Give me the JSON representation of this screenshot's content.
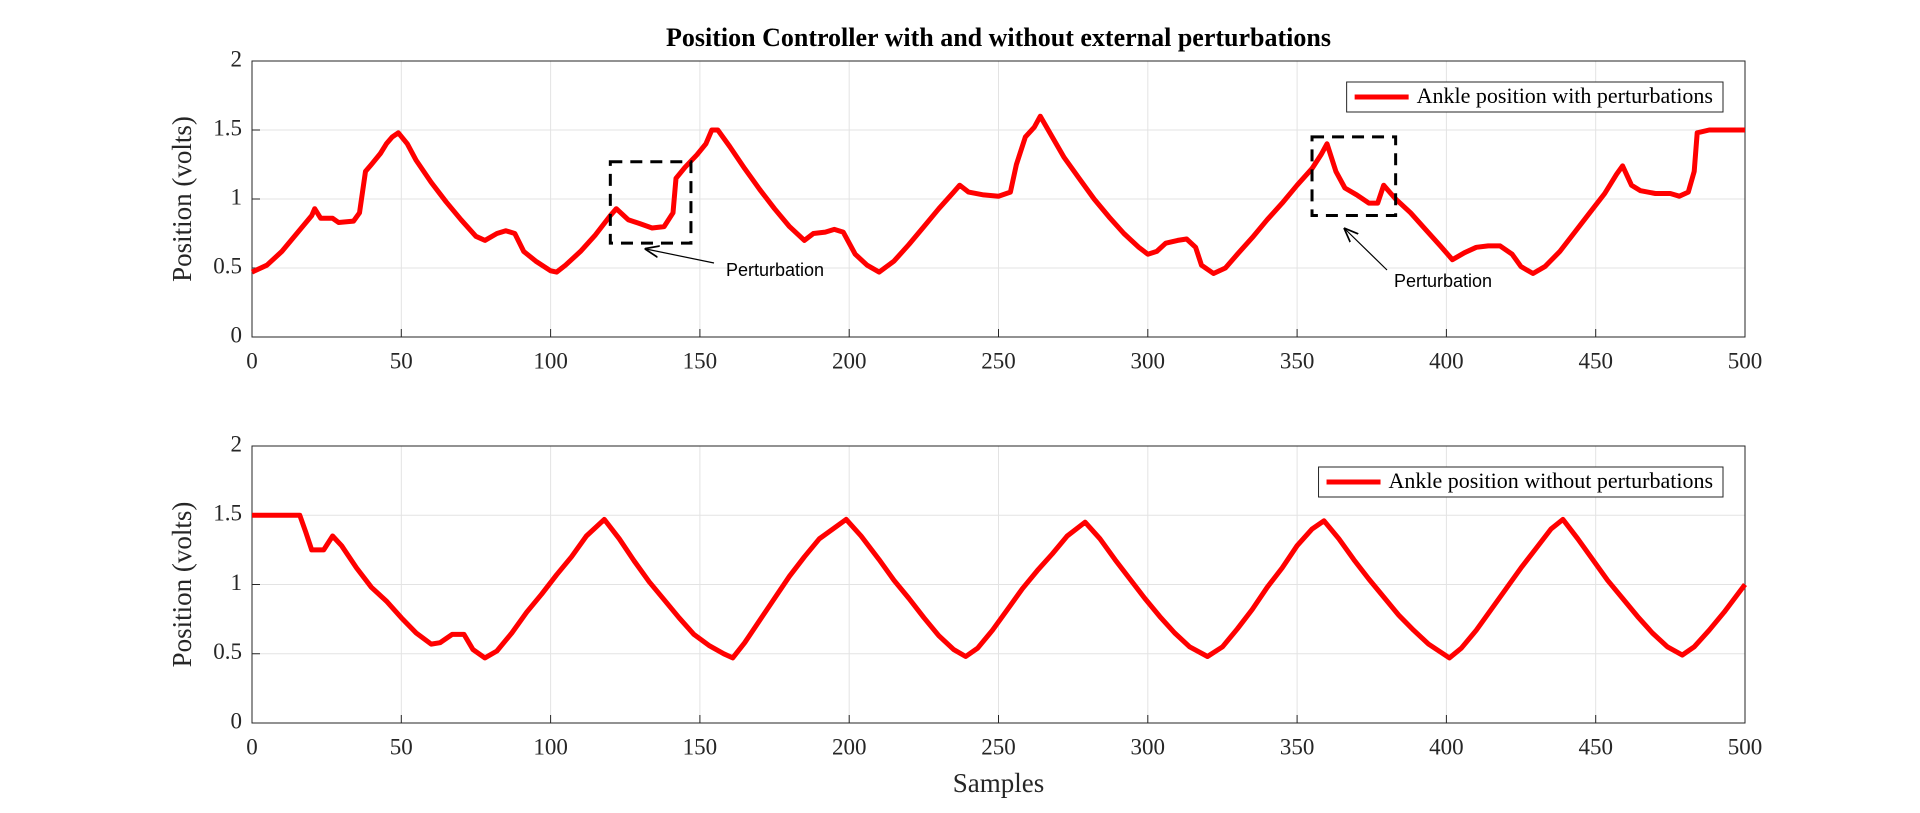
{
  "chart_data": [
    {
      "type": "line",
      "title": "Position Controller with and without external perturbations",
      "ylabel": "Position (volts)",
      "x": [
        0,
        5,
        10,
        15,
        20,
        21,
        23,
        27,
        29,
        34,
        36,
        38,
        40,
        43,
        45,
        47,
        49,
        52,
        55,
        60,
        65,
        70,
        75,
        78,
        82,
        85,
        88,
        91,
        95,
        100,
        102,
        105,
        110,
        115,
        120,
        122,
        126,
        130,
        134,
        138,
        141,
        142,
        145,
        149,
        152,
        154,
        156,
        160,
        165,
        170,
        175,
        180,
        185,
        188,
        192,
        195,
        198,
        202,
        206,
        210,
        215,
        220,
        225,
        230,
        235,
        237,
        240,
        245,
        250,
        254,
        256,
        259,
        262,
        264,
        268,
        272,
        277,
        282,
        287,
        292,
        297,
        300,
        303,
        306,
        310,
        313,
        316,
        318,
        322,
        326,
        330,
        335,
        340,
        345,
        350,
        355,
        358,
        360,
        363,
        366,
        370,
        374,
        377,
        379,
        383,
        388,
        393,
        398,
        402,
        406,
        410,
        414,
        418,
        422,
        425,
        429,
        433,
        438,
        443,
        448,
        453,
        457,
        459,
        462,
        465,
        470,
        475,
        478,
        481,
        483,
        484,
        488,
        493,
        500
      ],
      "series": [
        {
          "name": "Ankle position with perturbations",
          "color": "#ff0000",
          "values": [
            0.47,
            0.52,
            0.62,
            0.75,
            0.88,
            0.93,
            0.86,
            0.86,
            0.83,
            0.84,
            0.9,
            1.2,
            1.25,
            1.33,
            1.4,
            1.45,
            1.48,
            1.4,
            1.28,
            1.12,
            0.98,
            0.85,
            0.73,
            0.7,
            0.75,
            0.77,
            0.75,
            0.62,
            0.55,
            0.48,
            0.47,
            0.52,
            0.62,
            0.74,
            0.88,
            0.93,
            0.85,
            0.82,
            0.79,
            0.8,
            0.9,
            1.15,
            1.23,
            1.32,
            1.4,
            1.5,
            1.5,
            1.38,
            1.22,
            1.07,
            0.93,
            0.8,
            0.7,
            0.75,
            0.76,
            0.78,
            0.76,
            0.6,
            0.52,
            0.47,
            0.55,
            0.67,
            0.8,
            0.93,
            1.05,
            1.1,
            1.05,
            1.03,
            1.02,
            1.05,
            1.25,
            1.45,
            1.52,
            1.6,
            1.45,
            1.3,
            1.15,
            1.0,
            0.87,
            0.75,
            0.65,
            0.6,
            0.62,
            0.68,
            0.7,
            0.71,
            0.65,
            0.52,
            0.46,
            0.5,
            0.6,
            0.72,
            0.85,
            0.97,
            1.1,
            1.22,
            1.32,
            1.4,
            1.2,
            1.08,
            1.03,
            0.97,
            0.97,
            1.1,
            1.0,
            0.9,
            0.78,
            0.66,
            0.56,
            0.61,
            0.65,
            0.66,
            0.66,
            0.6,
            0.51,
            0.46,
            0.51,
            0.62,
            0.76,
            0.9,
            1.04,
            1.18,
            1.24,
            1.1,
            1.06,
            1.04,
            1.04,
            1.02,
            1.05,
            1.2,
            1.48,
            1.5,
            1.5,
            1.5
          ]
        }
      ],
      "xlim": [
        0,
        500
      ],
      "ylim": [
        0,
        2
      ],
      "xticks": [
        0,
        50,
        100,
        150,
        200,
        250,
        300,
        350,
        400,
        450,
        500
      ],
      "yticks": [
        0,
        0.5,
        1,
        1.5,
        2
      ],
      "grid": true,
      "legend": "upper right",
      "annotations": [
        {
          "text": "Perturbation"
        },
        {
          "text": "Perturbation"
        }
      ]
    },
    {
      "type": "line",
      "ylabel": "Position (volts)",
      "xlabel": "Samples",
      "x": [
        0,
        5,
        10,
        14,
        16,
        18,
        20,
        24,
        27,
        30,
        35,
        40,
        45,
        50,
        55,
        60,
        63,
        67,
        71,
        74,
        78,
        82,
        87,
        92,
        97,
        102,
        107,
        112,
        118,
        123,
        128,
        133,
        138,
        143,
        148,
        153,
        158,
        161,
        165,
        170,
        175,
        180,
        185,
        190,
        199,
        204,
        210,
        215,
        220,
        225,
        230,
        235,
        239,
        243,
        248,
        253,
        258,
        263,
        268,
        273,
        279,
        284,
        289,
        294,
        299,
        304,
        309,
        314,
        320,
        325,
        330,
        335,
        340,
        345,
        350,
        355,
        359,
        364,
        369,
        374,
        379,
        384,
        389,
        394,
        401,
        405,
        410,
        415,
        420,
        425,
        430,
        435,
        439,
        444,
        449,
        454,
        459,
        464,
        469,
        474,
        479,
        483,
        488,
        493,
        500
      ],
      "series": [
        {
          "name": "Ankle position without perturbations",
          "color": "#ff0000",
          "values": [
            1.5,
            1.5,
            1.5,
            1.5,
            1.5,
            1.38,
            1.25,
            1.25,
            1.35,
            1.28,
            1.12,
            0.98,
            0.88,
            0.76,
            0.65,
            0.57,
            0.58,
            0.64,
            0.64,
            0.53,
            0.47,
            0.52,
            0.65,
            0.8,
            0.93,
            1.07,
            1.2,
            1.35,
            1.47,
            1.33,
            1.17,
            1.02,
            0.89,
            0.76,
            0.64,
            0.56,
            0.5,
            0.47,
            0.58,
            0.74,
            0.9,
            1.06,
            1.2,
            1.33,
            1.47,
            1.35,
            1.18,
            1.03,
            0.9,
            0.76,
            0.63,
            0.53,
            0.48,
            0.54,
            0.67,
            0.82,
            0.97,
            1.1,
            1.22,
            1.35,
            1.45,
            1.33,
            1.18,
            1.04,
            0.9,
            0.77,
            0.65,
            0.55,
            0.48,
            0.55,
            0.68,
            0.82,
            0.98,
            1.12,
            1.28,
            1.4,
            1.46,
            1.33,
            1.18,
            1.04,
            0.91,
            0.78,
            0.67,
            0.57,
            0.47,
            0.54,
            0.67,
            0.82,
            0.97,
            1.12,
            1.26,
            1.4,
            1.47,
            1.33,
            1.18,
            1.03,
            0.9,
            0.77,
            0.65,
            0.55,
            0.49,
            0.55,
            0.67,
            0.8,
            1.0
          ]
        }
      ],
      "xlim": [
        0,
        500
      ],
      "ylim": [
        0,
        2
      ],
      "xticks": [
        0,
        50,
        100,
        150,
        200,
        250,
        300,
        350,
        400,
        450,
        500
      ],
      "yticks": [
        0,
        0.5,
        1,
        1.5,
        2
      ],
      "grid": true,
      "legend": "upper right"
    }
  ]
}
